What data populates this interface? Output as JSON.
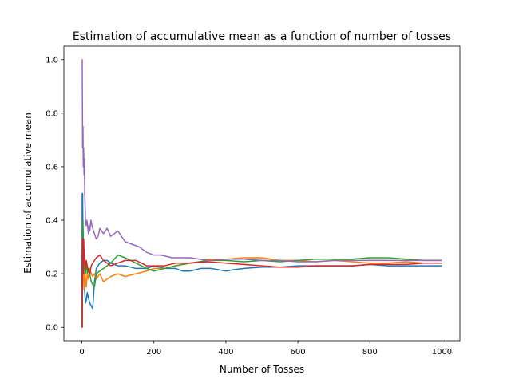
{
  "chart_data": {
    "type": "line",
    "title": "Estimation of accumulative mean as a function of number of tosses",
    "xlabel": "Number of Tosses",
    "ylabel": "Estimation of accumulative mean",
    "xlim": [
      -50,
      1050
    ],
    "ylim": [
      -0.05,
      1.05
    ],
    "xticks": [
      0,
      200,
      400,
      600,
      800,
      1000
    ],
    "yticks": [
      0.0,
      0.2,
      0.4,
      0.6,
      0.8,
      1.0
    ],
    "xtick_labels": [
      "0",
      "200",
      "400",
      "600",
      "800",
      "1000"
    ],
    "ytick_labels": [
      "0.0",
      "0.2",
      "0.4",
      "0.6",
      "0.8",
      "1.0"
    ],
    "grid": false,
    "series": [
      {
        "color": "#1f77b4",
        "x": [
          0,
          1,
          2,
          3,
          4,
          5,
          6,
          8,
          10,
          12,
          15,
          18,
          22,
          26,
          30,
          35,
          40,
          50,
          60,
          70,
          80,
          100,
          120,
          150,
          180,
          200,
          230,
          260,
          280,
          300,
          330,
          360,
          380,
          400,
          420,
          450,
          500,
          550,
          600,
          650,
          700,
          750,
          800,
          850,
          900,
          950,
          1000
        ],
        "y": [
          0.0,
          0.5,
          0.5,
          0.33,
          0.25,
          0.2,
          0.17,
          0.13,
          0.09,
          0.1,
          0.13,
          0.11,
          0.09,
          0.08,
          0.07,
          0.17,
          0.22,
          0.24,
          0.25,
          0.25,
          0.24,
          0.23,
          0.23,
          0.22,
          0.22,
          0.23,
          0.22,
          0.22,
          0.21,
          0.21,
          0.22,
          0.22,
          0.215,
          0.21,
          0.215,
          0.22,
          0.225,
          0.225,
          0.23,
          0.23,
          0.23,
          0.23,
          0.235,
          0.23,
          0.23,
          0.23,
          0.23
        ]
      },
      {
        "color": "#ff7f0e",
        "x": [
          0,
          1,
          2,
          3,
          4,
          5,
          6,
          8,
          10,
          12,
          15,
          18,
          22,
          26,
          30,
          35,
          40,
          50,
          60,
          80,
          100,
          120,
          150,
          180,
          200,
          230,
          260,
          300,
          330,
          350,
          400,
          450,
          500,
          550,
          600,
          650,
          700,
          750,
          800,
          850,
          900,
          950,
          1000
        ],
        "y": [
          0.0,
          0.0,
          0.33,
          0.25,
          0.2,
          0.17,
          0.14,
          0.22,
          0.18,
          0.15,
          0.2,
          0.18,
          0.22,
          0.2,
          0.19,
          0.2,
          0.18,
          0.2,
          0.17,
          0.19,
          0.2,
          0.19,
          0.2,
          0.21,
          0.22,
          0.22,
          0.23,
          0.24,
          0.245,
          0.255,
          0.255,
          0.26,
          0.26,
          0.25,
          0.25,
          0.245,
          0.25,
          0.245,
          0.24,
          0.24,
          0.245,
          0.24,
          0.24
        ]
      },
      {
        "color": "#2ca02c",
        "x": [
          0,
          1,
          2,
          3,
          4,
          5,
          6,
          8,
          10,
          12,
          15,
          18,
          22,
          26,
          30,
          35,
          40,
          50,
          60,
          80,
          100,
          120,
          150,
          180,
          200,
          230,
          260,
          300,
          350,
          400,
          450,
          500,
          550,
          600,
          650,
          700,
          750,
          800,
          850,
          900,
          950,
          1000
        ],
        "y": [
          0.0,
          0.0,
          0.33,
          0.4,
          0.33,
          0.29,
          0.25,
          0.22,
          0.2,
          0.25,
          0.2,
          0.22,
          0.2,
          0.17,
          0.16,
          0.15,
          0.2,
          0.21,
          0.22,
          0.24,
          0.27,
          0.26,
          0.24,
          0.22,
          0.21,
          0.22,
          0.23,
          0.24,
          0.25,
          0.25,
          0.245,
          0.25,
          0.245,
          0.25,
          0.255,
          0.255,
          0.255,
          0.26,
          0.26,
          0.255,
          0.25,
          0.25
        ]
      },
      {
        "color": "#d62728",
        "x": [
          0,
          1,
          2,
          3,
          4,
          5,
          6,
          8,
          10,
          12,
          15,
          18,
          22,
          26,
          30,
          35,
          40,
          50,
          60,
          80,
          100,
          120,
          150,
          180,
          200,
          230,
          260,
          300,
          350,
          400,
          450,
          500,
          550,
          600,
          650,
          700,
          750,
          800,
          850,
          900,
          950,
          1000
        ],
        "y": [
          0.0,
          0.0,
          0.33,
          0.25,
          0.2,
          0.33,
          0.29,
          0.25,
          0.22,
          0.25,
          0.23,
          0.21,
          0.2,
          0.23,
          0.24,
          0.25,
          0.26,
          0.27,
          0.25,
          0.23,
          0.24,
          0.25,
          0.25,
          0.23,
          0.23,
          0.23,
          0.24,
          0.24,
          0.245,
          0.24,
          0.235,
          0.23,
          0.225,
          0.225,
          0.23,
          0.23,
          0.23,
          0.235,
          0.235,
          0.235,
          0.24,
          0.24
        ]
      },
      {
        "color": "#9467bd",
        "x": [
          0,
          1,
          2,
          3,
          4,
          5,
          6,
          7,
          8,
          10,
          12,
          14,
          16,
          18,
          20,
          22,
          25,
          28,
          30,
          35,
          40,
          45,
          50,
          60,
          70,
          80,
          90,
          100,
          110,
          120,
          140,
          160,
          180,
          200,
          220,
          250,
          280,
          300,
          350,
          400,
          450,
          500,
          550,
          600,
          650,
          700,
          750,
          800,
          850,
          900,
          950,
          1000
        ],
        "y": [
          1.0,
          1.0,
          0.67,
          0.75,
          0.6,
          0.67,
          0.57,
          0.63,
          0.5,
          0.4,
          0.38,
          0.4,
          0.38,
          0.35,
          0.38,
          0.36,
          0.4,
          0.38,
          0.37,
          0.35,
          0.33,
          0.34,
          0.37,
          0.35,
          0.37,
          0.34,
          0.35,
          0.36,
          0.34,
          0.32,
          0.31,
          0.3,
          0.28,
          0.27,
          0.27,
          0.26,
          0.26,
          0.26,
          0.25,
          0.255,
          0.255,
          0.25,
          0.25,
          0.245,
          0.245,
          0.25,
          0.25,
          0.25,
          0.25,
          0.25,
          0.25,
          0.25
        ]
      }
    ]
  }
}
